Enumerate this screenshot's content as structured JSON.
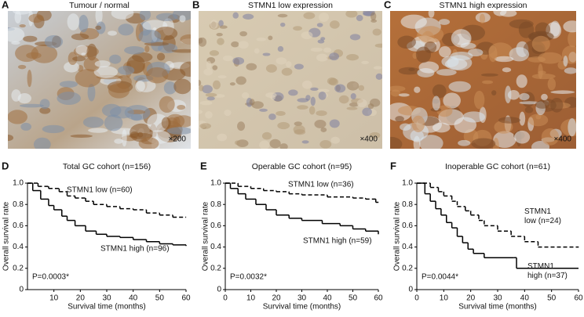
{
  "image_panels": [
    {
      "letter": "A",
      "title": "Tumour / normal",
      "magnification": "×200"
    },
    {
      "letter": "B",
      "title": "STMN1 low expression",
      "magnification": "×400"
    },
    {
      "letter": "C",
      "title": "STMN1 high expression",
      "magnification": "×400"
    }
  ],
  "chart_data": [
    {
      "type": "line",
      "step": true,
      "letter": "D",
      "title": "Total GC cohort (n=156)",
      "x_label": "Survival time (months)",
      "y_label": "Overall survival rate",
      "annotation": "P=0.0003*",
      "xlim": [
        0,
        60
      ],
      "xticks": [
        10,
        20,
        30,
        40,
        50,
        60
      ],
      "ylim": [
        0,
        1
      ],
      "yticks": [
        0,
        0.2,
        0.4,
        0.6,
        0.8,
        {
          "value": 1,
          "label": "1.0"
        }
      ],
      "series": [
        {
          "name": "STMN1 low (n=60)",
          "color": "#000000",
          "dash": true,
          "x": [
            0,
            4,
            8,
            12,
            15,
            18,
            22,
            25,
            30,
            35,
            40,
            45,
            50,
            55,
            60
          ],
          "values": [
            1,
            0.97,
            0.95,
            0.92,
            0.88,
            0.86,
            0.83,
            0.8,
            0.78,
            0.76,
            0.75,
            0.72,
            0.7,
            0.68,
            0.68
          ]
        },
        {
          "name": "STMN1 high (n=96)",
          "color": "#000000",
          "dash": false,
          "x": [
            0,
            2,
            5,
            8,
            10,
            13,
            15,
            18,
            22,
            26,
            30,
            35,
            40,
            45,
            50,
            55,
            60
          ],
          "values": [
            1,
            0.93,
            0.85,
            0.79,
            0.75,
            0.69,
            0.65,
            0.6,
            0.55,
            0.52,
            0.5,
            0.49,
            0.47,
            0.45,
            0.43,
            0.42,
            0.41
          ]
        }
      ]
    },
    {
      "type": "line",
      "step": true,
      "letter": "E",
      "title": "Operable GC cohort (n=95)",
      "x_label": "Survival time (months)",
      "y_label": "Overall survival rate",
      "annotation": "P=0.0032*",
      "xlim": [
        0,
        60
      ],
      "xticks": [
        0,
        10,
        20,
        30,
        40,
        50,
        60
      ],
      "ylim": [
        0,
        1
      ],
      "yticks": [
        0,
        0.2,
        0.4,
        0.6,
        0.8,
        {
          "value": 1,
          "label": "1.0"
        }
      ],
      "series": [
        {
          "name": "STMN1 low (n=36)",
          "color": "#000000",
          "dash": true,
          "x": [
            0,
            5,
            10,
            15,
            20,
            25,
            30,
            40,
            50,
            55,
            59,
            60
          ],
          "values": [
            1,
            0.97,
            0.95,
            0.93,
            0.92,
            0.9,
            0.89,
            0.87,
            0.86,
            0.85,
            0.82,
            0.82
          ]
        },
        {
          "name": "STMN1 high (n=59)",
          "color": "#000000",
          "dash": false,
          "x": [
            0,
            2,
            5,
            8,
            12,
            16,
            20,
            25,
            30,
            38,
            45,
            50,
            55,
            60
          ],
          "values": [
            1,
            0.95,
            0.9,
            0.85,
            0.8,
            0.75,
            0.7,
            0.67,
            0.65,
            0.62,
            0.6,
            0.57,
            0.55,
            0.52
          ]
        }
      ]
    },
    {
      "type": "line",
      "step": true,
      "letter": "F",
      "title": "Inoperable GC cohort (n=61)",
      "x_label": "Survival time (months)",
      "y_label": "Overall survival rate",
      "annotation": "P=0.0044*",
      "xlim": [
        0,
        60
      ],
      "xticks": [
        0,
        10,
        20,
        30,
        40,
        50,
        60
      ],
      "ylim": [
        0,
        1
      ],
      "yticks": [
        0,
        0.2,
        0.4,
        0.6,
        0.8,
        {
          "value": 1,
          "label": "1.0"
        }
      ],
      "series": [
        {
          "name": "STMN1 low (n=24)",
          "color": "#000000",
          "dash": true,
          "x": [
            0,
            5,
            8,
            10,
            13,
            15,
            18,
            20,
            23,
            25,
            30,
            35,
            40,
            45,
            60
          ],
          "values": [
            1,
            0.96,
            0.92,
            0.88,
            0.83,
            0.78,
            0.74,
            0.7,
            0.65,
            0.6,
            0.55,
            0.5,
            0.45,
            0.4,
            0.4
          ]
        },
        {
          "name": "STMN1 high (n=37)",
          "color": "#000000",
          "dash": false,
          "x": [
            0,
            3,
            5,
            7,
            9,
            11,
            13,
            15,
            17,
            19,
            21,
            25,
            36,
            37,
            60
          ],
          "values": [
            1,
            0.9,
            0.83,
            0.76,
            0.7,
            0.63,
            0.58,
            0.5,
            0.44,
            0.38,
            0.34,
            0.3,
            0.3,
            0.2,
            0.2
          ]
        }
      ]
    }
  ]
}
